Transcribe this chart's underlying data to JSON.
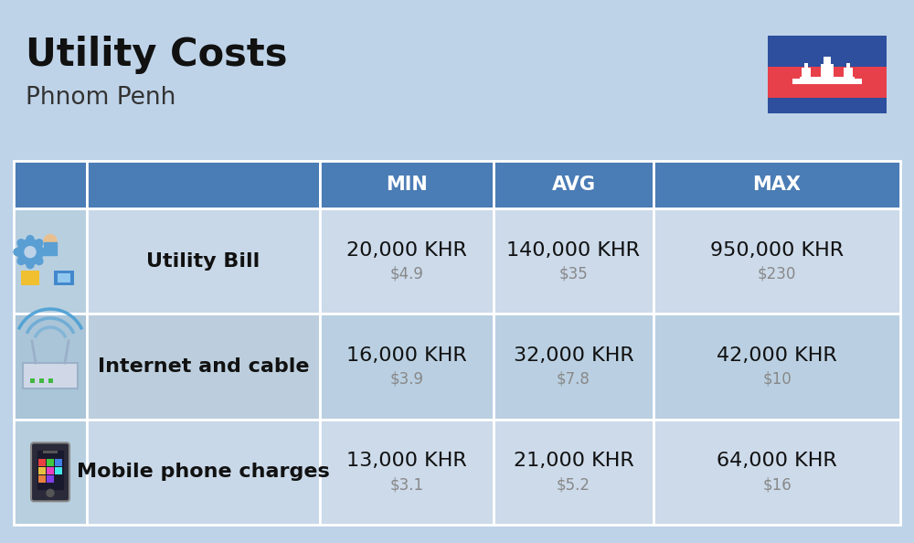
{
  "title": "Utility Costs",
  "subtitle": "Phnom Penh",
  "background_color": "#bed3e8",
  "header_bg_color": "#4a7cb5",
  "header_text_color": "#ffffff",
  "row_bg_color_light": "#ccdaea",
  "row_bg_color_dark": "#bad0e2",
  "icon_col_bg_light": "#b8cfe0",
  "icon_col_bg_dark": "#aac4d8",
  "name_col_bg_light": "#c8d8e8",
  "name_col_bg_dark": "#bccedd",
  "col_headers": [
    "MIN",
    "AVG",
    "MAX"
  ],
  "rows": [
    {
      "name": "Utility Bill",
      "icon": "utility",
      "min_khr": "20,000 KHR",
      "min_usd": "$4.9",
      "avg_khr": "140,000 KHR",
      "avg_usd": "$35",
      "max_khr": "950,000 KHR",
      "max_usd": "$230"
    },
    {
      "name": "Internet and cable",
      "icon": "internet",
      "min_khr": "16,000 KHR",
      "min_usd": "$3.9",
      "avg_khr": "32,000 KHR",
      "avg_usd": "$7.8",
      "max_khr": "42,000 KHR",
      "max_usd": "$10"
    },
    {
      "name": "Mobile phone charges",
      "icon": "mobile",
      "min_khr": "13,000 KHR",
      "min_usd": "$3.1",
      "avg_khr": "21,000 KHR",
      "avg_usd": "$5.2",
      "max_khr": "64,000 KHR",
      "max_usd": "$16"
    }
  ],
  "flag_blue": "#2e4f9e",
  "flag_red": "#e8404a",
  "flag_white": "#ffffff",
  "title_fontsize": 30,
  "subtitle_fontsize": 19,
  "header_fontsize": 15,
  "khr_fontsize": 16,
  "usd_fontsize": 12,
  "name_fontsize": 16,
  "cell_edge_color": "#ffffff",
  "cell_lw": 2.0
}
